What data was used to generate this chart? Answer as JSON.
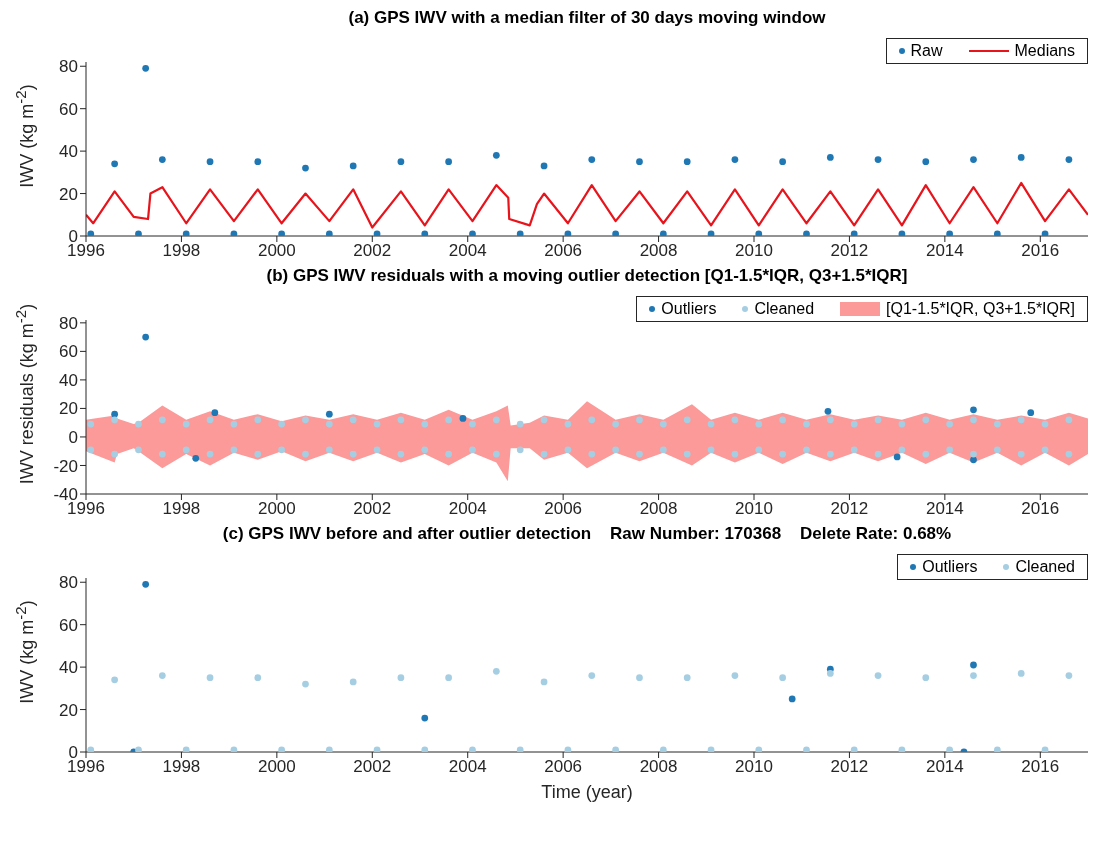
{
  "chart_data": [
    {
      "type": "scatter",
      "title": "(a) GPS IWV with a median filter of 30 days moving window",
      "ylabel": "IWV (kg m$^{-2}$)",
      "xlim": [
        1996,
        2017
      ],
      "xticks": [
        1996,
        1998,
        2000,
        2002,
        2004,
        2006,
        2008,
        2010,
        2012,
        2014,
        2016
      ],
      "ylim": [
        0,
        82
      ],
      "yticks": [
        0,
        20,
        40,
        60,
        80
      ],
      "legend": "top right",
      "grid": false,
      "series": [
        {
          "name": "Raw",
          "color": "#1f77b4",
          "x": [
            1996.1,
            1996.6,
            1997.1,
            1997.25,
            1997.6,
            1998.1,
            1998.6,
            1999.1,
            1999.6,
            2000.1,
            2000.6,
            2001.1,
            2001.6,
            2002.1,
            2002.6,
            2003.1,
            2003.6,
            2004.1,
            2004.6,
            2005.1,
            2005.6,
            2006.1,
            2006.6,
            2007.1,
            2007.6,
            2008.1,
            2008.6,
            2009.1,
            2009.6,
            2010.1,
            2010.6,
            2011.1,
            2011.6,
            2012.1,
            2012.6,
            2013.1,
            2013.6,
            2014.1,
            2014.6,
            2015.1,
            2015.6,
            2016.1,
            2016.6
          ],
          "values": [
            1,
            34,
            1,
            79,
            36,
            1,
            35,
            1,
            35,
            1,
            32,
            1,
            33,
            1,
            35,
            1,
            35,
            1,
            38,
            1,
            33,
            1,
            36,
            1,
            35,
            1,
            35,
            1,
            36,
            1,
            35,
            1,
            37,
            1,
            36,
            1,
            35,
            1,
            36,
            1,
            37,
            1,
            36
          ]
        },
        {
          "name": "Medians",
          "type": "line",
          "color": "#e8141c",
          "x": [
            1996,
            1996.15,
            1996.6,
            1997,
            1997.3,
            1997.35,
            1997.6,
            1998.1,
            1998.6,
            1999.1,
            1999.6,
            2000.1,
            2000.6,
            2001.1,
            2001.6,
            2002,
            2002.6,
            2003.1,
            2003.6,
            2004.1,
            2004.6,
            2004.85,
            2004.87,
            2005.3,
            2005.45,
            2005.6,
            2006.1,
            2006.6,
            2007.1,
            2007.6,
            2008.1,
            2008.6,
            2009.1,
            2009.6,
            2010.1,
            2010.6,
            2011.1,
            2011.6,
            2012.1,
            2012.6,
            2013.1,
            2013.6,
            2014.1,
            2014.6,
            2015.1,
            2015.6,
            2016.1,
            2016.6,
            2017
          ],
          "values": [
            10,
            6,
            21,
            9,
            8,
            20,
            23,
            6,
            22,
            7,
            22,
            6,
            20,
            7,
            22,
            4,
            21,
            5,
            22,
            7,
            24,
            18,
            8,
            5,
            15,
            20,
            6,
            24,
            7,
            21,
            6,
            21,
            5,
            22,
            5,
            22,
            6,
            21,
            5,
            22,
            5,
            24,
            6,
            23,
            6,
            25,
            7,
            22,
            10
          ]
        }
      ]
    },
    {
      "type": "scatter",
      "title": "(b) GPS IWV residuals with a moving outlier detection [Q1-1.5*IQR, Q3+1.5*IQR]",
      "ylabel": "IWV residuals (kg m$^{-2}$)",
      "xlim": [
        1996,
        2017
      ],
      "xticks": [
        1996,
        1998,
        2000,
        2002,
        2004,
        2006,
        2008,
        2010,
        2012,
        2014,
        2016
      ],
      "ylim": [
        -40,
        82
      ],
      "yticks": [
        -40,
        -20,
        0,
        20,
        40,
        60,
        80
      ],
      "legend": "top right",
      "grid": false,
      "series": [
        {
          "name": "Outliers",
          "color": "#1f77b4",
          "x": [
            1996.6,
            1997.25,
            1998.3,
            1998.7,
            2001.1,
            2003.9,
            2011.55,
            2013,
            2014.6,
            2014.6,
            2015.8
          ],
          "values": [
            16,
            70,
            -15,
            17,
            16,
            13,
            18,
            -14,
            19,
            -16,
            17
          ]
        },
        {
          "name": "Cleaned",
          "color": "#a6cee3",
          "x": [
            1996.1,
            1996.1,
            1996.6,
            1996.6,
            1997.1,
            1997.1,
            1997.6,
            1997.6,
            1998.1,
            1998.1,
            1998.6,
            1998.6,
            1999.1,
            1999.1,
            1999.6,
            1999.6,
            2000.1,
            2000.1,
            2000.6,
            2000.6,
            2001.1,
            2001.1,
            2001.6,
            2001.6,
            2002.1,
            2002.1,
            2002.6,
            2002.6,
            2003.1,
            2003.1,
            2003.6,
            2003.6,
            2004.1,
            2004.1,
            2004.6,
            2004.6,
            2005.1,
            2005.1,
            2005.6,
            2005.6,
            2006.1,
            2006.1,
            2006.6,
            2006.6,
            2007.1,
            2007.1,
            2007.6,
            2007.6,
            2008.1,
            2008.1,
            2008.6,
            2008.6,
            2009.1,
            2009.1,
            2009.6,
            2009.6,
            2010.1,
            2010.1,
            2010.6,
            2010.6,
            2011.1,
            2011.1,
            2011.6,
            2011.6,
            2012.1,
            2012.1,
            2012.6,
            2012.6,
            2013.1,
            2013.1,
            2013.6,
            2013.6,
            2014.1,
            2014.1,
            2014.6,
            2014.6,
            2015.1,
            2015.1,
            2015.6,
            2015.6,
            2016.1,
            2016.1,
            2016.6,
            2016.6
          ],
          "values": [
            9,
            -9,
            12,
            -12,
            9,
            -9,
            12,
            -12,
            9,
            -9,
            12,
            -12,
            9,
            -9,
            12,
            -12,
            9,
            -9,
            12,
            -12,
            9,
            -9,
            12,
            -12,
            9,
            -9,
            12,
            -12,
            9,
            -9,
            12,
            -12,
            9,
            -9,
            12,
            -12,
            9,
            -9,
            12,
            -12,
            9,
            -9,
            12,
            -12,
            9,
            -9,
            12,
            -12,
            9,
            -9,
            12,
            -12,
            9,
            -9,
            12,
            -12,
            9,
            -9,
            12,
            -12,
            9,
            -9,
            12,
            -12,
            9,
            -9,
            12,
            -12,
            9,
            -9,
            12,
            -12,
            9,
            -9,
            12,
            -12,
            9,
            -9,
            12,
            -12,
            9,
            -9,
            12,
            -12
          ]
        },
        {
          "type": "area",
          "color": "#fb9a99",
          "x": [
            1996,
            1996.6,
            1996.65,
            1997,
            1997.1,
            1997.6,
            1998.1,
            1998.6,
            1999.1,
            1999.6,
            2000.1,
            2000.6,
            2001.1,
            2001.6,
            2002.1,
            2002.6,
            2003.1,
            2003.6,
            2004.1,
            2004.6,
            2004.84,
            2004.9,
            2005.3,
            2005.6,
            2006.1,
            2006.5,
            2007.1,
            2007.6,
            2008.1,
            2008.7,
            2009.1,
            2009.6,
            2010.1,
            2010.6,
            2011.1,
            2011.6,
            2012.1,
            2012.6,
            2013.1,
            2013.6,
            2014.1,
            2014.6,
            2015.1,
            2015.6,
            2016.1,
            2016.6,
            2017
          ],
          "values": [
            -10,
            -18,
            -12,
            -8,
            -10,
            -22,
            -12,
            -20,
            -11,
            -16,
            -10,
            -17,
            -11,
            -17,
            -11,
            -18,
            -12,
            -20,
            -11,
            -18,
            -31,
            -8,
            -8,
            -16,
            -11,
            -22,
            -11,
            -17,
            -11,
            -20,
            -11,
            -18,
            -11,
            -19,
            -11,
            -17,
            -11,
            -17,
            -11,
            -19,
            -11,
            -18,
            -11,
            -20,
            -11,
            -20,
            -12
          ]
        },
        {
          "name": "[Q1-1.5*IQR, Q3+1.5*IQR]",
          "type": "area",
          "color": "#fb9a99",
          "x": [
            1996,
            1996.6,
            1996.65,
            1997,
            1997.1,
            1997.6,
            1998.1,
            1998.6,
            1999.1,
            1999.6,
            2000.1,
            2000.6,
            2001.1,
            2001.6,
            2002.1,
            2002.6,
            2003.1,
            2003.6,
            2004.1,
            2004.6,
            2004.84,
            2004.9,
            2005.3,
            2005.6,
            2006.1,
            2006.5,
            2007.1,
            2007.6,
            2008.1,
            2008.7,
            2009.1,
            2009.6,
            2010.1,
            2010.6,
            2011.1,
            2011.6,
            2012.1,
            2012.6,
            2013.1,
            2013.6,
            2014.1,
            2014.6,
            2015.1,
            2015.6,
            2016.1,
            2016.6,
            2017
          ],
          "values": [
            12,
            15,
            13,
            9,
            10,
            22,
            12,
            18,
            12,
            16,
            11,
            15,
            12,
            16,
            12,
            17,
            12,
            19,
            12,
            18,
            22,
            8,
            10,
            15,
            12,
            25,
            12,
            16,
            12,
            23,
            12,
            17,
            12,
            17,
            12,
            16,
            12,
            15,
            12,
            17,
            12,
            16,
            12,
            15,
            12,
            17,
            13
          ]
        }
      ]
    },
    {
      "type": "scatter",
      "title": "(c) GPS IWV before and after outlier detection    Raw Number: 170368    Delete Rate: 0.68%",
      "xlabel": "Time (year)",
      "ylabel": "IWV (kg m$^{-2}$)",
      "xlim": [
        1996,
        2017
      ],
      "xticks": [
        1996,
        1998,
        2000,
        2002,
        2004,
        2006,
        2008,
        2010,
        2012,
        2014,
        2016
      ],
      "ylim": [
        0,
        82
      ],
      "yticks": [
        0,
        20,
        40,
        60,
        80
      ],
      "legend": "top right",
      "grid": false,
      "series": [
        {
          "name": "Outliers",
          "color": "#1f77b4",
          "x": [
            1997,
            1997.25,
            2003.1,
            2010.8,
            2011.6,
            2014.4,
            2014.6
          ],
          "values": [
            0,
            79,
            16,
            25,
            39,
            0,
            41
          ]
        },
        {
          "name": "Cleaned",
          "color": "#a6cee3",
          "x": [
            1996.1,
            1996.6,
            1997.1,
            1997.6,
            1998.1,
            1998.6,
            1999.1,
            1999.6,
            2000.1,
            2000.6,
            2001.1,
            2001.6,
            2002.1,
            2002.6,
            2003.1,
            2003.6,
            2004.1,
            2004.6,
            2005.1,
            2005.6,
            2006.1,
            2006.6,
            2007.1,
            2007.6,
            2008.1,
            2008.6,
            2009.1,
            2009.6,
            2010.1,
            2010.6,
            2011.1,
            2011.6,
            2012.1,
            2012.6,
            2013.1,
            2013.6,
            2014.1,
            2014.6,
            2015.1,
            2015.6,
            2016.1,
            2016.6
          ],
          "values": [
            1,
            34,
            1,
            36,
            1,
            35,
            1,
            35,
            1,
            32,
            1,
            33,
            1,
            35,
            1,
            35,
            1,
            38,
            1,
            33,
            1,
            36,
            1,
            35,
            1,
            35,
            1,
            36,
            1,
            35,
            1,
            37,
            1,
            36,
            1,
            35,
            1,
            36,
            1,
            37,
            1,
            36
          ]
        }
      ]
    }
  ]
}
